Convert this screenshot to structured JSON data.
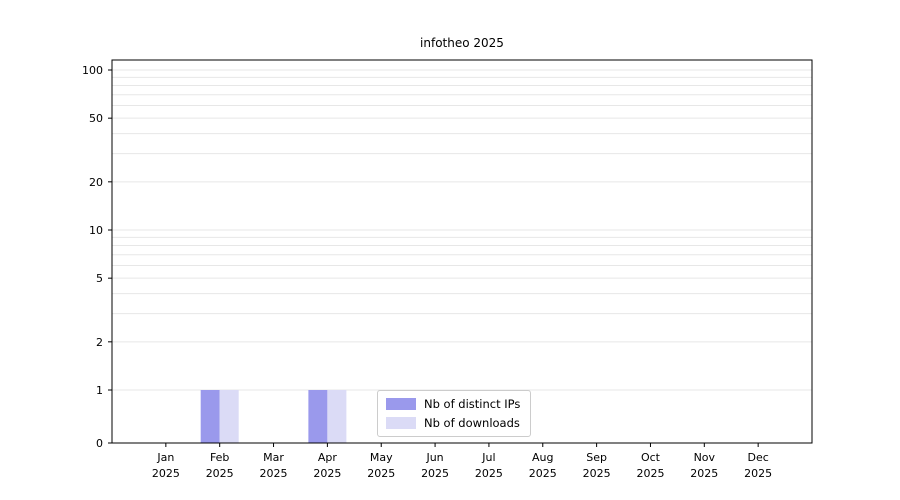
{
  "chart_data": {
    "type": "bar",
    "title": "infotheo 2025",
    "categories": [
      "Jan 2025",
      "Feb 2025",
      "Mar 2025",
      "Apr 2025",
      "May 2025",
      "Jun 2025",
      "Jul 2025",
      "Aug 2025",
      "Sep 2025",
      "Oct 2025",
      "Nov 2025",
      "Dec 2025"
    ],
    "series": [
      {
        "name": "Nb of distinct IPs",
        "color": "#9a99ec",
        "values": [
          0,
          1,
          0,
          1,
          0,
          0,
          0,
          0,
          0,
          0,
          0,
          0
        ]
      },
      {
        "name": "Nb of downloads",
        "color": "#dbdbf6",
        "values": [
          0,
          1,
          0,
          1,
          0,
          0,
          0,
          0,
          0,
          0,
          0,
          0
        ]
      }
    ],
    "yscale": "symlog",
    "y_tick_labels": [
      0,
      1,
      2,
      5,
      10,
      20,
      50,
      100
    ],
    "grid_values": [
      1,
      2,
      3,
      4,
      5,
      6,
      7,
      8,
      9,
      10,
      20,
      30,
      40,
      50,
      60,
      70,
      80,
      90,
      100
    ],
    "ylim": [
      0,
      115
    ],
    "grid": "horizontal",
    "legend_position": "lower center",
    "colors": {
      "axis": "#000000",
      "grid": "#e7e7e7",
      "background": "#ffffff"
    }
  }
}
